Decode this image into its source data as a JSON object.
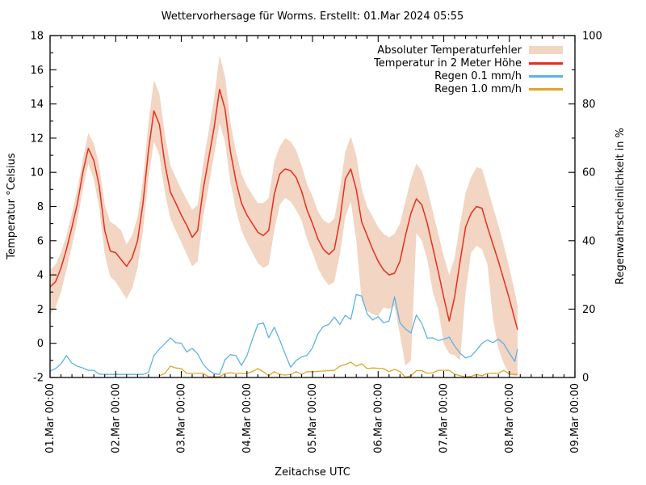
{
  "title": "Wettervorhersage für Worms. Erstellt: 01.Mar 2024 05:55",
  "axes": {
    "x": {
      "label": "Zeitachse UTC",
      "tick_labels": [
        "01.Mar 00:00",
        "02.Mar 00:00",
        "03.Mar 00:00",
        "04.Mar 00:00",
        "05.Mar 00:00",
        "06.Mar 00:00",
        "07.Mar 00:00",
        "08.Mar 00:00",
        "09.Mar 00:00"
      ],
      "span_hours": 192,
      "minor_tick_hours": 4
    },
    "y_left": {
      "label": "Temperatur °Celsius",
      "min": -2,
      "max": 18,
      "major_step": 2,
      "minor_step": 1
    },
    "y_right": {
      "label": "Regenwahrscheinlichkeit in %",
      "min": 0,
      "max": 100,
      "major_step": 20,
      "minor_step": 10
    }
  },
  "legend": [
    {
      "label": "Absoluter Temperaturfehler",
      "swatch": "band",
      "color": "#f2d5c3"
    },
    {
      "label": "Temperatur in 2 Meter Höhe",
      "swatch": "line",
      "color": "#e62f1e"
    },
    {
      "label": "Regen 0.1 mm/h",
      "swatch": "line",
      "color": "#5eb3e4"
    },
    {
      "label": "Regen 1.0 mm/h",
      "swatch": "line",
      "color": "#dfa52c"
    }
  ],
  "chart_data": {
    "type": "line",
    "x_span_hours": 192,
    "y_left_min": -2,
    "y_left_max": 18,
    "y_right_min": 0,
    "y_right_max": 100,
    "grid": "off",
    "legend_position": "top-right-inside",
    "hours": [
      0,
      2,
      4,
      6,
      8,
      10,
      12,
      14,
      16,
      18,
      20,
      22,
      24,
      26,
      28,
      30,
      32,
      34,
      36,
      38,
      40,
      42,
      44,
      46,
      48,
      50,
      52,
      54,
      56,
      58,
      60,
      62,
      64,
      66,
      68,
      70,
      72,
      74,
      76,
      78,
      80,
      82,
      84,
      86,
      88,
      90,
      92,
      94,
      96,
      98,
      100,
      102,
      104,
      106,
      108,
      110,
      112,
      114,
      116,
      118,
      120,
      122,
      124,
      126,
      128,
      130,
      132,
      134,
      136,
      138,
      140,
      142,
      144,
      146,
      148,
      150,
      152,
      154,
      156,
      158,
      160,
      162,
      164,
      166,
      168,
      170,
      171
    ],
    "series": [
      {
        "name": "Absoluter Temperaturfehler",
        "type": "band",
        "axis": "left",
        "color": "#f2d5c3",
        "upper": [
          4.3,
          4.6,
          5.3,
          6.3,
          7.6,
          9.0,
          10.8,
          12.3,
          11.7,
          10.4,
          8.1,
          7.1,
          6.9,
          6.6,
          5.8,
          6.3,
          7.4,
          9.6,
          12.9,
          15.4,
          14.6,
          12.2,
          10.4,
          9.7,
          9.0,
          8.4,
          7.8,
          8.1,
          10.5,
          12.4,
          14.3,
          16.85,
          15.6,
          12.9,
          11.2,
          9.9,
          9.2,
          8.7,
          8.2,
          8.2,
          8.5,
          10.6,
          11.5,
          12.0,
          11.8,
          11.3,
          10.4,
          9.3,
          8.6,
          7.7,
          7.2,
          7.0,
          7.3,
          9.0,
          11.2,
          12.1,
          11.0,
          9.0,
          8.0,
          7.4,
          6.8,
          6.4,
          6.2,
          6.4,
          7.0,
          8.3,
          9.6,
          10.5,
          10.1,
          9.0,
          7.7,
          6.4,
          5.1,
          4.0,
          5.0,
          7.0,
          8.8,
          9.7,
          10.3,
          10.2,
          9.1,
          8.0,
          6.9,
          5.7,
          4.4,
          3.0,
          2.2
        ],
        "lower": [
          1.7,
          2.1,
          3.0,
          4.3,
          5.7,
          7.2,
          9.0,
          10.5,
          9.6,
          7.9,
          5.2,
          3.9,
          3.6,
          3.1,
          2.6,
          3.2,
          4.4,
          6.6,
          9.7,
          11.8,
          11.0,
          8.8,
          7.3,
          6.6,
          5.9,
          5.2,
          4.5,
          4.8,
          7.4,
          9.2,
          11.0,
          12.85,
          11.8,
          9.4,
          7.8,
          6.6,
          5.9,
          5.3,
          4.7,
          4.4,
          4.6,
          6.6,
          8.1,
          8.5,
          8.3,
          7.8,
          7.2,
          6.1,
          5.3,
          4.4,
          3.8,
          3.4,
          3.6,
          5.2,
          7.4,
          8.3,
          6.0,
          2.5,
          1.9,
          1.7,
          1.6,
          2.1,
          2.0,
          2.2,
          0.5,
          -1.3,
          -1.0,
          6.45,
          6.0,
          4.9,
          3.0,
          2.0,
          0.0,
          -0.6,
          -0.7,
          -1.0,
          3.0,
          5.3,
          5.7,
          5.5,
          4.6,
          1.5,
          -0.3,
          -1.2,
          -1.8,
          -1.9,
          -1.9
        ]
      },
      {
        "name": "Temperatur in 2 Meter Höhe",
        "type": "line",
        "axis": "left",
        "color": "#e62f1e",
        "values": [
          3.3,
          3.6,
          4.4,
          5.5,
          6.8,
          8.2,
          10.0,
          11.4,
          10.7,
          9.2,
          6.6,
          5.4,
          5.3,
          4.9,
          4.5,
          5.0,
          6.0,
          8.2,
          11.3,
          13.6,
          12.8,
          10.5,
          8.85,
          8.2,
          7.5,
          6.9,
          6.2,
          6.6,
          9.0,
          10.8,
          12.6,
          14.85,
          13.7,
          11.2,
          9.5,
          8.2,
          7.5,
          7.0,
          6.5,
          6.3,
          6.6,
          8.7,
          9.9,
          10.2,
          10.1,
          9.7,
          8.9,
          7.8,
          7.0,
          6.1,
          5.5,
          5.2,
          5.5,
          7.2,
          9.6,
          10.2,
          9.0,
          7.1,
          6.3,
          5.5,
          4.8,
          4.3,
          4.0,
          4.1,
          4.8,
          6.3,
          7.6,
          8.45,
          8.1,
          7.0,
          5.6,
          4.2,
          2.7,
          1.3,
          2.7,
          4.8,
          6.8,
          7.6,
          8.0,
          7.9,
          6.8,
          5.8,
          4.8,
          3.7,
          2.6,
          1.4,
          0.8
        ]
      },
      {
        "name": "Regen 0.1 mm/h",
        "type": "line",
        "axis": "right",
        "color": "#5eb3e4",
        "values": [
          1.9,
          2.6,
          4.0,
          6.4,
          4.2,
          3.3,
          2.8,
          2.1,
          2.1,
          1.0,
          0.9,
          0.9,
          0.9,
          0.9,
          0.9,
          0.9,
          0.9,
          0.9,
          1.5,
          6.4,
          8.3,
          9.9,
          11.6,
          10.2,
          10.0,
          7.5,
          8.5,
          6.9,
          3.9,
          2.1,
          1.1,
          0.9,
          5.2,
          6.7,
          6.4,
          3.5,
          6.4,
          11.1,
          15.5,
          16.0,
          11.6,
          14.7,
          11.0,
          6.9,
          3.0,
          5.0,
          6.0,
          6.5,
          8.7,
          12.8,
          15.0,
          15.5,
          17.7,
          15.5,
          18.2,
          17.0,
          24.3,
          23.8,
          18.6,
          16.8,
          17.8,
          16.0,
          16.5,
          23.6,
          16.0,
          14.2,
          13.0,
          18.3,
          15.8,
          11.5,
          11.6,
          10.8,
          11.2,
          11.8,
          9.2,
          7.1,
          5.7,
          6.3,
          8.0,
          10.0,
          11.0,
          10.2,
          11.2,
          9.8,
          7.1,
          4.7,
          8.3
        ]
      },
      {
        "name": "Regen 1.0 mm/h",
        "type": "line",
        "axis": "right",
        "color": "#dfa52c",
        "values": [
          null,
          null,
          null,
          null,
          null,
          null,
          null,
          null,
          null,
          null,
          null,
          null,
          null,
          null,
          null,
          null,
          null,
          null,
          null,
          null,
          0.5,
          1.2,
          3.3,
          2.8,
          2.6,
          1.2,
          1.2,
          1.2,
          1.2,
          0.2,
          0.2,
          0.2,
          1.2,
          1.4,
          1.2,
          1.2,
          1.2,
          1.7,
          2.6,
          1.7,
          0.5,
          1.7,
          0.9,
          0.7,
          0.9,
          1.7,
          0.9,
          1.7,
          1.7,
          1.8,
          1.9,
          2.0,
          2.1,
          3.3,
          3.8,
          4.5,
          3.3,
          4.0,
          2.6,
          2.8,
          2.7,
          2.6,
          1.7,
          2.4,
          1.7,
          0.1,
          0.5,
          2.0,
          2.0,
          1.2,
          1.4,
          2.1,
          2.1,
          2.1,
          1.0,
          0.5,
          0.2,
          0.3,
          0.9,
          0.5,
          1.2,
          1.2,
          1.2,
          2.1,
          1.0,
          0.9,
          0.9
        ]
      }
    ]
  }
}
